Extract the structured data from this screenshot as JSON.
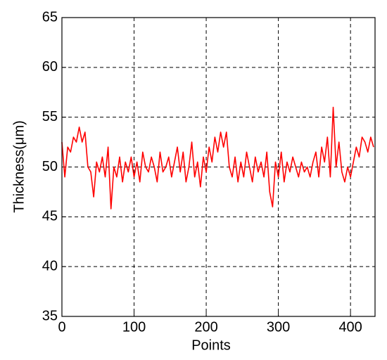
{
  "chart_data": {
    "type": "line",
    "xlabel": "Points",
    "ylabel": "Thickness(μm)",
    "x": [
      0,
      4,
      8,
      12,
      16,
      20,
      24,
      28,
      32,
      36,
      40,
      44,
      48,
      52,
      56,
      60,
      64,
      68,
      72,
      76,
      80,
      84,
      88,
      92,
      96,
      100,
      104,
      108,
      112,
      116,
      120,
      124,
      128,
      132,
      136,
      140,
      144,
      148,
      152,
      156,
      160,
      164,
      168,
      172,
      176,
      180,
      184,
      188,
      192,
      196,
      200,
      204,
      208,
      212,
      216,
      220,
      224,
      228,
      232,
      236,
      240,
      244,
      248,
      252,
      256,
      260,
      264,
      268,
      272,
      276,
      280,
      284,
      288,
      292,
      296,
      300,
      304,
      308,
      312,
      316,
      320,
      324,
      328,
      332,
      336,
      340,
      344,
      348,
      352,
      356,
      360,
      364,
      368,
      372,
      376,
      380,
      384,
      388,
      392,
      396,
      400,
      404,
      408,
      412,
      416,
      420,
      424,
      428,
      432
    ],
    "values": [
      52.5,
      49,
      52,
      51.5,
      53,
      52.5,
      54,
      52.5,
      53.5,
      50,
      49.5,
      47,
      50.5,
      49.5,
      51,
      49,
      52,
      45.8,
      50,
      49,
      51,
      48.5,
      50.5,
      49.5,
      51,
      49,
      50.5,
      48.5,
      51.5,
      50,
      49.5,
      51,
      50,
      48.5,
      51.5,
      49.5,
      50,
      51,
      49,
      50.5,
      52,
      49.5,
      51.5,
      48.5,
      50,
      52.5,
      49,
      50.5,
      48,
      51,
      49.5,
      52,
      50.5,
      53,
      51.5,
      53.5,
      52,
      53.5,
      50,
      49,
      51,
      48.5,
      50.5,
      49,
      51.5,
      50,
      48.5,
      51,
      49.5,
      50.5,
      49,
      51.5,
      47.5,
      46,
      50.5,
      49,
      51.5,
      48.5,
      50.5,
      49.5,
      51,
      50,
      49,
      50.5,
      49.5,
      50,
      49,
      50.5,
      51.5,
      49,
      52,
      50.5,
      53,
      49,
      56,
      50,
      52.5,
      49.5,
      48.5,
      50,
      49,
      50.5,
      52,
      51,
      53,
      52.5,
      51.5,
      53,
      52
    ],
    "color": "#ff0000",
    "xlim": [
      0,
      434
    ],
    "xticks": [
      0,
      100,
      200,
      300,
      400
    ],
    "ylim": [
      35,
      65
    ],
    "yticks": [
      35,
      40,
      45,
      50,
      55,
      60,
      65
    ],
    "grid": true
  }
}
